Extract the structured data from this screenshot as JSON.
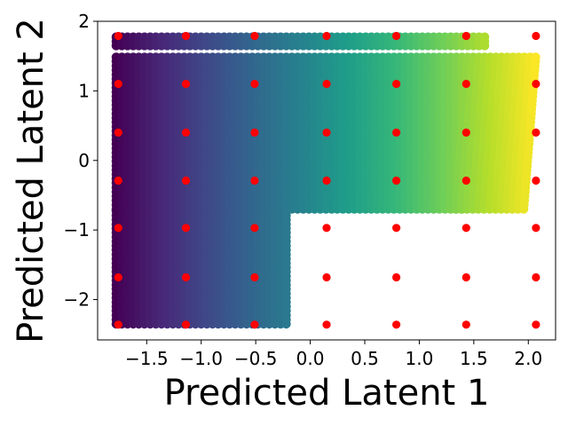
{
  "chart_data": {
    "type": "scatter",
    "title": "",
    "xlabel": "Predicted Latent 1",
    "ylabel": "Predicted Latent 2",
    "xlim": [
      -1.95,
      2.25
    ],
    "ylim": [
      -2.58,
      2.0
    ],
    "xticks": [
      -1.5,
      -1.0,
      -0.5,
      0.0,
      0.5,
      1.0,
      1.5,
      2.0
    ],
    "xtick_labels": [
      "−1.5",
      "−1.0",
      "−0.5",
      "0.0",
      "0.5",
      "1.0",
      "1.5",
      "2.0"
    ],
    "yticks": [
      -2,
      -1,
      0,
      1,
      2
    ],
    "ytick_labels": [
      "−2",
      "−1",
      "0",
      "1",
      "2"
    ],
    "grid": false,
    "legend": "none",
    "colormap": "viridis",
    "series": [
      {
        "role": "predicted-cloud",
        "color_by": "x",
        "points_regions": [
          {
            "x_range": [
              -1.78,
              -0.2
            ],
            "y_range": [
              -2.35,
              -0.7
            ]
          },
          {
            "x_range": [
              -1.78,
              2.08
            ],
            "y_range": [
              -0.7,
              1.5
            ]
          },
          {
            "x_range": [
              -1.78,
              1.6
            ],
            "y_range": [
              1.65,
              1.8
            ]
          }
        ]
      },
      {
        "role": "true-grid",
        "color": "#ff0000",
        "x": [
          -1.76,
          -1.14,
          -0.51,
          0.15,
          0.79,
          1.43,
          2.07
        ],
        "y": [
          -2.36,
          -1.68,
          -0.97,
          -0.29,
          0.4,
          1.1,
          1.79
        ]
      }
    ]
  }
}
